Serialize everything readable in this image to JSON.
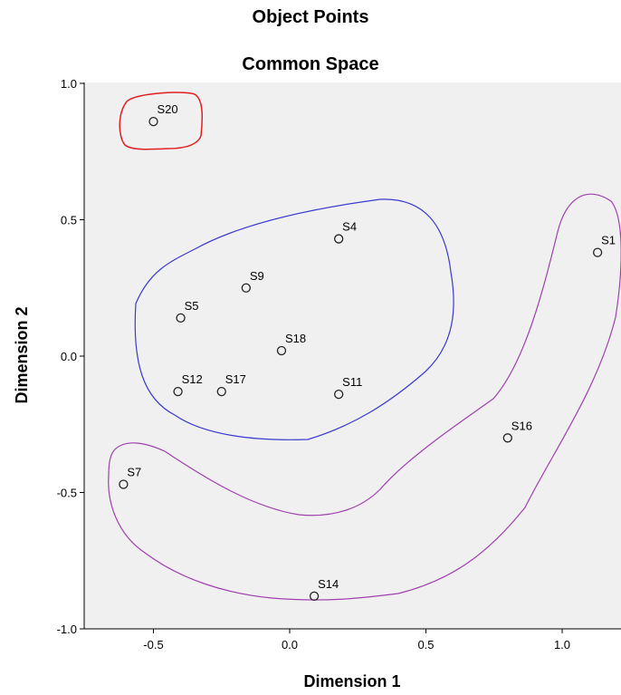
{
  "title": "Object Points",
  "subtitle": "Common Space",
  "chart_data": {
    "type": "scatter",
    "title": "Object Points",
    "subtitle": "Common Space",
    "xlabel": "Dimension 1",
    "ylabel": "Dimension 2",
    "xlim": [
      -0.75,
      1.22
    ],
    "ylim": [
      -1.0,
      1.0
    ],
    "xticks": [
      "-0.5",
      "0.0",
      "0.5",
      "1.0"
    ],
    "xtick_values": [
      -0.5,
      0.0,
      0.5,
      1.0
    ],
    "yticks": [
      "1.0",
      "0.5",
      "0.0",
      "-0.5",
      "-1.0"
    ],
    "ytick_values": [
      1.0,
      0.5,
      0.0,
      -0.5,
      -1.0
    ],
    "grid": false,
    "background_color": "#f0f0f0",
    "points": [
      {
        "label": "S20",
        "x": -0.5,
        "y": 0.86
      },
      {
        "label": "S4",
        "x": 0.18,
        "y": 0.43
      },
      {
        "label": "S1",
        "x": 1.13,
        "y": 0.38
      },
      {
        "label": "S9",
        "x": -0.16,
        "y": 0.25
      },
      {
        "label": "S5",
        "x": -0.4,
        "y": 0.14
      },
      {
        "label": "S18",
        "x": -0.03,
        "y": 0.02
      },
      {
        "label": "S12",
        "x": -0.41,
        "y": -0.13
      },
      {
        "label": "S17",
        "x": -0.25,
        "y": -0.13
      },
      {
        "label": "S11",
        "x": 0.18,
        "y": -0.14
      },
      {
        "label": "S16",
        "x": 0.8,
        "y": -0.3
      },
      {
        "label": "S7",
        "x": -0.61,
        "y": -0.47
      },
      {
        "label": "S14",
        "x": 0.09,
        "y": -0.88
      }
    ],
    "groups": [
      {
        "color": "#e02020",
        "members": [
          "S20"
        ]
      },
      {
        "color": "#3a3ad0",
        "members": [
          "S4",
          "S9",
          "S5",
          "S18",
          "S12",
          "S17",
          "S11"
        ]
      },
      {
        "color": "#a040b0",
        "members": [
          "S1",
          "S16",
          "S7",
          "S14"
        ]
      }
    ]
  }
}
